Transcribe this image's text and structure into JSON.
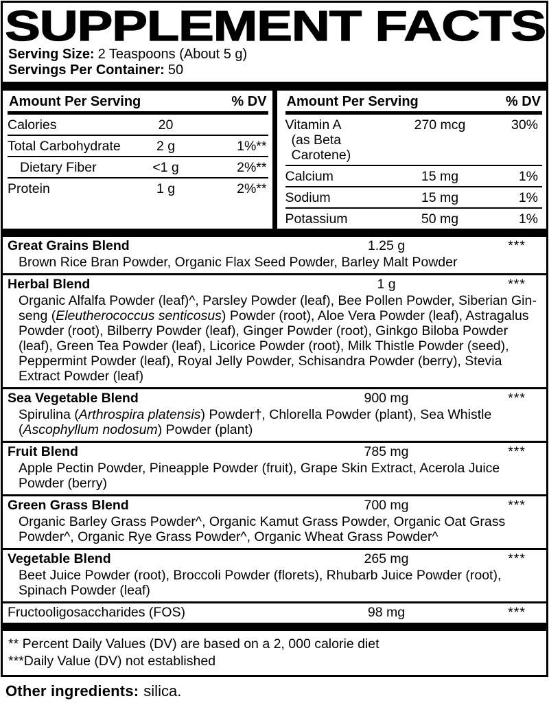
{
  "title": "SUPPLEMENT FACTS",
  "serving": {
    "size_label": "Serving Size:",
    "size_value": "2 Teaspoons (About 5 g)",
    "per_container_label": "Servings Per Container:",
    "per_container_value": "50"
  },
  "table_header": {
    "amount": "Amount Per Serving",
    "dv": "% DV"
  },
  "nutrients_left": [
    {
      "name": "Calories",
      "amount": "20",
      "dv": ""
    },
    {
      "name": "Total Carbohydrate",
      "amount": "2 g",
      "dv": "1%**"
    },
    {
      "name": "Dietary Fiber",
      "amount": "<1 g",
      "dv": "2%**"
    },
    {
      "name": "Protein",
      "amount": "1 g",
      "dv": "2%**"
    }
  ],
  "nutrients_right": [
    {
      "name": "Vitamin A",
      "name2": "(as Beta Carotene)",
      "amount": "270 mcg",
      "dv": "30%"
    },
    {
      "name": "Calcium",
      "amount": "15 mg",
      "dv": "1%"
    },
    {
      "name": "Sodium",
      "amount": "15 mg",
      "dv": "1%"
    },
    {
      "name": "Potassium",
      "amount": "50 mg",
      "dv": "1%"
    }
  ],
  "blends": [
    {
      "name": "Great Grains Blend",
      "amount": "1.25 g",
      "dv": "***",
      "ingredients": [
        {
          "t": "Brown Rice Bran Powder, Organic Flax Seed Powder, Barley Malt Powder"
        }
      ]
    },
    {
      "name": "Herbal Blend",
      "amount": "1 g",
      "dv": "***",
      "ingredients": [
        {
          "t": "Organic Alfalfa Powder (leaf)^, Parsley Powder (leaf), Bee Pollen Powder, Siberian Gin­seng ("
        },
        {
          "t": "Eleutherococcus senticosus",
          "i": true
        },
        {
          "t": ") Powder (root), Aloe Vera Powder (leaf), Astragalus Powder (root), Bilberry Powder (leaf), Ginger Powder (root), Ginkgo Biloba Powder (leaf), Green Tea Powder (leaf), Licorice Powder (root), Milk Thistle Powder (seed), Peppermint Powder (leaf), Royal Jelly Powder, Schisandra Powder (berry), Stevia Extract Powder (leaf)"
        }
      ]
    },
    {
      "name": "Sea Vegetable Blend",
      "amount": "900 mg",
      "dv": "***",
      "ingredients": [
        {
          "t": "Spirulina ("
        },
        {
          "t": "Arthrospira platensis",
          "i": true
        },
        {
          "t": ") Powder†, Chlorella Powder (plant), Sea Whistle ("
        },
        {
          "t": "Ascophyllum nodosum",
          "i": true
        },
        {
          "t": ") Powder (plant)"
        }
      ]
    },
    {
      "name": "Fruit Blend",
      "amount": "785 mg",
      "dv": "***",
      "ingredients": [
        {
          "t": "Apple Pectin Powder, Pineapple Powder (fruit), Grape Skin Extract, Acerola Juice Powder (berry)"
        }
      ]
    },
    {
      "name": "Green Grass Blend",
      "amount": "700 mg",
      "dv": "***",
      "ingredients": [
        {
          "t": "Organic Barley Grass Powder^, Organic Kamut Grass Powder, Organic Oat Grass Powder^, Organic Rye Grass Powder^, Organic Wheat Grass Powder^"
        }
      ]
    },
    {
      "name": "Vegetable Blend",
      "amount": "265 mg",
      "dv": "***",
      "ingredients": [
        {
          "t": "Beet Juice Powder (root), Broccoli Powder (florets), Rhubarb Juice Powder (root), Spinach Powder (leaf)"
        }
      ]
    },
    {
      "name": "Fructooligosaccharides (FOS)",
      "amount": "98 mg",
      "dv": "***",
      "ingredients": []
    }
  ],
  "footnotes": [
    "** Percent Daily Values (DV) are based on a 2, 000 calorie diet",
    "***Daily Value (DV) not established"
  ],
  "other_ingredients": {
    "label": "Other ingredients:",
    "value": "silica."
  }
}
